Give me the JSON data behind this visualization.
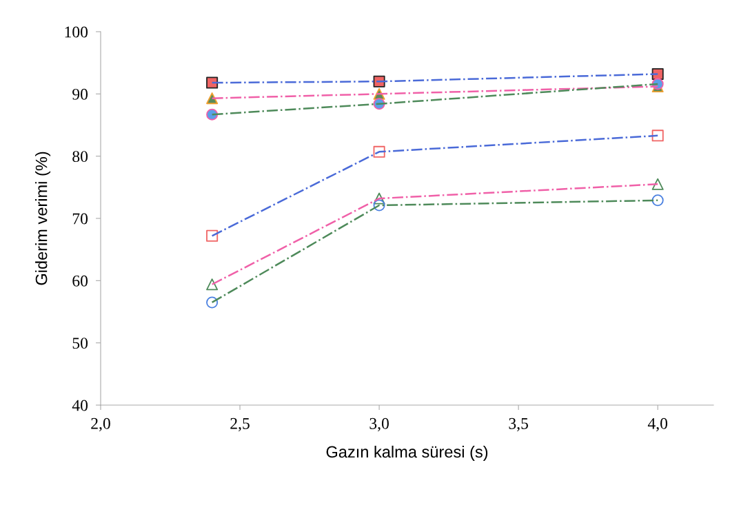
{
  "chart_data": {
    "type": "line",
    "xlabel": "Gazın kalma süresi (s)",
    "ylabel": "Giderim verimi (%)",
    "x": [
      2.4,
      3.0,
      4.0
    ],
    "series": [
      {
        "color": "#4a6ad8",
        "marker": "square",
        "values": [
          91.8,
          92.0,
          93.2
        ]
      },
      {
        "color": "#f060a8",
        "marker": "triangle",
        "values": [
          89.3,
          90.0,
          91.2
        ]
      },
      {
        "color": "#4e8a5a",
        "marker": "circle",
        "values": [
          86.7,
          88.4,
          91.6
        ]
      },
      {
        "color": "#4a6ad8",
        "marker": "square",
        "values": [
          67.2,
          80.7,
          83.3
        ]
      },
      {
        "color": "#f060a8",
        "marker": "triangle",
        "values": [
          59.4,
          73.2,
          75.5
        ]
      },
      {
        "color": "#4e8a5a",
        "marker": "circle",
        "values": [
          56.5,
          72.1,
          72.9
        ]
      }
    ],
    "xlim": [
      2.0,
      4.2
    ],
    "xticks": [
      {
        "value": 2.0,
        "label": "2,0"
      },
      {
        "value": 2.5,
        "label": "2,5"
      },
      {
        "value": 3.0,
        "label": "3,0"
      },
      {
        "value": 3.5,
        "label": "3,5"
      },
      {
        "value": 4.0,
        "label": "4,0"
      }
    ],
    "ylim": [
      40,
      100
    ],
    "yticks": [
      40,
      50,
      60,
      70,
      80,
      90,
      100
    ],
    "grid": false,
    "legend": false,
    "line_style": "dashdot"
  }
}
